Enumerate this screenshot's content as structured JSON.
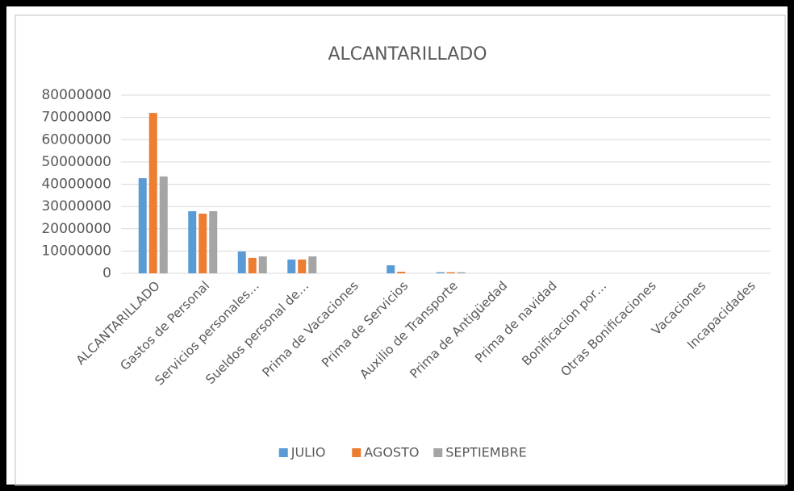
{
  "chart_data": {
    "type": "bar",
    "title": "ALCANTARILLADO",
    "categories": [
      "ALCANTARILLADO",
      "Gastos de Personal",
      "Servicios personales…",
      "Sueldos personal de…",
      "Prima de Vacaciones",
      "Prima de Servicios",
      "Auxilio de Transporte",
      "Prima de Antigüedad",
      "Prima de navidad",
      "Bonificacion por…",
      "Otras Bonificaciones",
      "Vacaciones",
      "Incapacidades"
    ],
    "series": [
      {
        "name": "JULIO",
        "color": "#5b9bd5",
        "values": [
          42700000,
          27900000,
          9800000,
          6200000,
          0,
          3600000,
          500000,
          0,
          0,
          0,
          0,
          0,
          0
        ]
      },
      {
        "name": "AGOSTO",
        "color": "#ed7d31",
        "values": [
          72000000,
          26800000,
          6900000,
          6200000,
          0,
          700000,
          500000,
          0,
          0,
          0,
          0,
          0,
          0
        ]
      },
      {
        "name": "SEPTIEMBRE",
        "color": "#a5a5a5",
        "values": [
          43500000,
          27900000,
          7600000,
          7600000,
          0,
          0,
          500000,
          0,
          0,
          0,
          0,
          0,
          0
        ]
      }
    ],
    "ylim": [
      0,
      80000000
    ],
    "yticks": [
      0,
      10000000,
      20000000,
      30000000,
      40000000,
      50000000,
      60000000,
      70000000,
      80000000
    ],
    "grid": true,
    "legend": "bottom"
  }
}
